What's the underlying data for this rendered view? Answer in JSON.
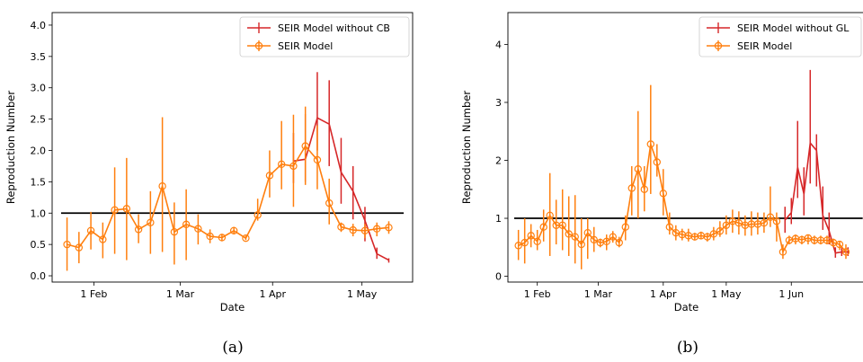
{
  "chart_data": [
    {
      "type": "line",
      "panel_caption": "(a)",
      "xlabel": "Date",
      "ylabel": "Reproduction Number",
      "ylim": [
        -0.1,
        4.2
      ],
      "yticks": [
        "0.0",
        "0.5",
        "1.0",
        "1.5",
        "2.0",
        "2.5",
        "3.0",
        "3.5",
        "4.0"
      ],
      "xlim": [
        "2020-01-18",
        "2020-05-18"
      ],
      "xticks": [
        {
          "date": "2020-02-01",
          "label": "1 Feb"
        },
        {
          "date": "2020-03-01",
          "label": "1 Mar"
        },
        {
          "date": "2020-04-01",
          "label": "1 Apr"
        },
        {
          "date": "2020-05-01",
          "label": "1 May"
        }
      ],
      "reference_line": {
        "y": 1.0,
        "from": "2020-01-21",
        "to": "2020-05-15",
        "color": "#000000"
      },
      "legend_position": "top-right",
      "series": [
        {
          "name": "SEIR Model without CB",
          "color": "#d62728",
          "marker": "none",
          "x": [
            "2020-04-08",
            "2020-04-12",
            "2020-04-16",
            "2020-04-20",
            "2020-04-24",
            "2020-04-28",
            "2020-05-02",
            "2020-05-06",
            "2020-05-10"
          ],
          "y": [
            1.83,
            1.86,
            2.52,
            2.42,
            1.65,
            1.35,
            0.88,
            0.35,
            0.25
          ],
          "err_low": [
            1.48,
            1.5,
            2.0,
            1.75,
            1.15,
            0.9,
            0.55,
            0.27,
            0.21
          ],
          "err_high": [
            2.28,
            2.58,
            3.25,
            3.12,
            2.2,
            1.75,
            1.1,
            0.45,
            0.28
          ]
        },
        {
          "name": "SEIR Model",
          "color": "#ff7f0e",
          "marker": "open-circle",
          "x": [
            "2020-01-23",
            "2020-01-27",
            "2020-01-31",
            "2020-02-04",
            "2020-02-08",
            "2020-02-12",
            "2020-02-16",
            "2020-02-20",
            "2020-02-24",
            "2020-02-28",
            "2020-03-03",
            "2020-03-07",
            "2020-03-11",
            "2020-03-15",
            "2020-03-19",
            "2020-03-23",
            "2020-03-27",
            "2020-03-31",
            "2020-04-04",
            "2020-04-08",
            "2020-04-12",
            "2020-04-16",
            "2020-04-20",
            "2020-04-24",
            "2020-04-28",
            "2020-05-02",
            "2020-05-06",
            "2020-05-10"
          ],
          "y": [
            0.5,
            0.45,
            0.72,
            0.58,
            1.05,
            1.07,
            0.74,
            0.85,
            1.43,
            0.7,
            0.82,
            0.75,
            0.63,
            0.61,
            0.72,
            0.6,
            0.97,
            1.6,
            1.78,
            1.75,
            2.07,
            1.85,
            1.16,
            0.78,
            0.73,
            0.72,
            0.75,
            0.77
          ],
          "err_low": [
            0.08,
            0.2,
            0.42,
            0.28,
            0.35,
            0.25,
            0.52,
            0.35,
            0.38,
            0.18,
            0.25,
            0.5,
            0.52,
            0.55,
            0.66,
            0.57,
            0.88,
            1.25,
            1.38,
            1.1,
            1.45,
            1.38,
            0.82,
            0.7,
            0.63,
            0.6,
            0.63,
            0.67
          ],
          "err_high": [
            0.93,
            0.7,
            1.02,
            0.85,
            1.73,
            1.88,
            0.98,
            1.35,
            2.53,
            1.17,
            1.38,
            0.98,
            0.74,
            0.67,
            0.78,
            0.64,
            1.23,
            2.0,
            2.47,
            2.57,
            2.7,
            2.4,
            1.55,
            0.85,
            0.83,
            0.83,
            0.85,
            0.87
          ]
        }
      ]
    },
    {
      "type": "line",
      "panel_caption": "(b)",
      "xlabel": "Date",
      "ylabel": "Reproduction Number",
      "ylim": [
        -0.1,
        4.55
      ],
      "yticks": [
        "0",
        "1",
        "2",
        "3",
        "4"
      ],
      "xlim": [
        "2020-01-18",
        "2020-07-06"
      ],
      "xticks": [
        {
          "date": "2020-02-01",
          "label": "1 Feb"
        },
        {
          "date": "2020-03-01",
          "label": "1 Mar"
        },
        {
          "date": "2020-04-01",
          "label": "1 Apr"
        },
        {
          "date": "2020-05-01",
          "label": "1 May"
        },
        {
          "date": "2020-06-01",
          "label": "1 Jun"
        }
      ],
      "reference_line": {
        "y": 1.0,
        "from": "2020-01-21",
        "to": "2020-07-05",
        "color": "#000000"
      },
      "legend_position": "top-right",
      "series": [
        {
          "name": "SEIR Model without GL",
          "color": "#d62728",
          "marker": "none",
          "x": [
            "2020-05-29",
            "2020-06-01",
            "2020-06-04",
            "2020-06-07",
            "2020-06-10",
            "2020-06-13",
            "2020-06-16",
            "2020-06-19",
            "2020-06-22",
            "2020-06-25",
            "2020-06-28"
          ],
          "y": [
            0.97,
            1.1,
            1.88,
            1.42,
            2.3,
            2.17,
            1.05,
            0.78,
            0.4,
            0.42,
            0.42
          ],
          "err_low": [
            0.75,
            0.9,
            1.35,
            1.05,
            1.6,
            1.55,
            0.8,
            0.55,
            0.32,
            0.35,
            0.35
          ],
          "err_high": [
            1.2,
            1.35,
            2.68,
            1.88,
            3.56,
            2.45,
            1.55,
            1.1,
            0.5,
            0.5,
            0.5
          ]
        },
        {
          "name": "SEIR Model",
          "color": "#ff7f0e",
          "marker": "open-circle",
          "x": [
            "2020-01-23",
            "2020-01-26",
            "2020-01-29",
            "2020-02-01",
            "2020-02-04",
            "2020-02-07",
            "2020-02-10",
            "2020-02-13",
            "2020-02-16",
            "2020-02-19",
            "2020-02-22",
            "2020-02-25",
            "2020-02-28",
            "2020-03-02",
            "2020-03-05",
            "2020-03-08",
            "2020-03-11",
            "2020-03-14",
            "2020-03-17",
            "2020-03-20",
            "2020-03-23",
            "2020-03-26",
            "2020-03-29",
            "2020-04-01",
            "2020-04-04",
            "2020-04-07",
            "2020-04-10",
            "2020-04-13",
            "2020-04-16",
            "2020-04-19",
            "2020-04-22",
            "2020-04-25",
            "2020-04-28",
            "2020-05-01",
            "2020-05-04",
            "2020-05-07",
            "2020-05-10",
            "2020-05-13",
            "2020-05-16",
            "2020-05-19",
            "2020-05-22",
            "2020-05-25",
            "2020-05-28",
            "2020-05-31",
            "2020-06-03",
            "2020-06-06",
            "2020-06-09",
            "2020-06-12",
            "2020-06-15",
            "2020-06-18",
            "2020-06-21",
            "2020-06-24",
            "2020-06-27"
          ],
          "y": [
            0.53,
            0.58,
            0.7,
            0.6,
            0.85,
            1.05,
            0.88,
            0.88,
            0.73,
            0.68,
            0.55,
            0.75,
            0.63,
            0.58,
            0.6,
            0.68,
            0.58,
            0.85,
            1.52,
            1.85,
            1.5,
            2.28,
            1.97,
            1.43,
            0.85,
            0.75,
            0.72,
            0.7,
            0.68,
            0.7,
            0.68,
            0.73,
            0.78,
            0.88,
            0.95,
            0.92,
            0.88,
            0.9,
            0.9,
            0.92,
            1.02,
            0.95,
            0.42,
            0.62,
            0.65,
            0.63,
            0.66,
            0.62,
            0.62,
            0.62,
            0.58,
            0.55,
            0.42
          ],
          "err_low": [
            0.28,
            0.22,
            0.5,
            0.45,
            0.6,
            0.35,
            0.55,
            0.45,
            0.35,
            0.22,
            0.12,
            0.3,
            0.42,
            0.5,
            0.45,
            0.58,
            0.5,
            0.62,
            1.05,
            1.0,
            1.12,
            1.42,
            1.72,
            1.05,
            0.72,
            0.62,
            0.62,
            0.6,
            0.62,
            0.64,
            0.6,
            0.62,
            0.68,
            0.72,
            0.75,
            0.72,
            0.7,
            0.7,
            0.72,
            0.75,
            0.85,
            0.6,
            0.3,
            0.55,
            0.55,
            0.55,
            0.55,
            0.55,
            0.55,
            0.55,
            0.5,
            0.45,
            0.3
          ],
          "err_high": [
            0.8,
            1.0,
            0.9,
            0.8,
            1.15,
            1.78,
            1.32,
            1.5,
            1.38,
            1.4,
            1.0,
            1.0,
            0.85,
            0.65,
            0.72,
            0.78,
            0.68,
            1.05,
            1.9,
            2.85,
            1.9,
            3.3,
            2.28,
            1.85,
            1.1,
            0.88,
            0.82,
            0.82,
            0.75,
            0.77,
            0.75,
            0.85,
            0.95,
            1.05,
            1.15,
            1.12,
            1.05,
            1.12,
            1.1,
            1.1,
            1.55,
            1.1,
            0.55,
            0.7,
            0.72,
            0.7,
            0.72,
            0.7,
            0.7,
            0.7,
            0.65,
            0.6,
            0.55
          ]
        }
      ]
    }
  ]
}
